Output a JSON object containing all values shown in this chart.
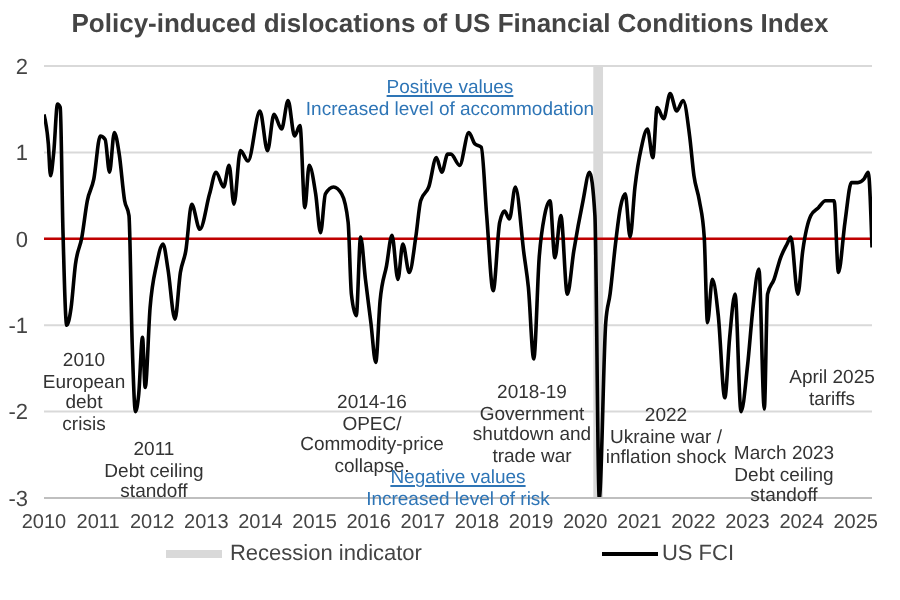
{
  "chart_data": {
    "type": "line",
    "title": "Policy-induced dislocations of US Financial Conditions Index",
    "x": [
      2010.0,
      2010.08,
      2010.12,
      2010.18,
      2010.25,
      2010.3,
      2010.35,
      2010.42,
      2010.5,
      2010.58,
      2010.7,
      2010.8,
      2010.92,
      2011.04,
      2011.13,
      2011.21,
      2011.3,
      2011.39,
      2011.49,
      2011.57,
      2011.63,
      2011.69,
      2011.75,
      2011.82,
      2011.87,
      2011.96,
      2012.08,
      2012.2,
      2012.29,
      2012.42,
      2012.52,
      2012.62,
      2012.73,
      2012.88,
      2013.06,
      2013.18,
      2013.32,
      2013.42,
      2013.51,
      2013.63,
      2013.77,
      2013.99,
      2014.13,
      2014.25,
      2014.39,
      2014.51,
      2014.63,
      2014.73,
      2014.82,
      2014.9,
      2015.02,
      2015.11,
      2015.2,
      2015.35,
      2015.5,
      2015.62,
      2015.68,
      2015.77,
      2015.85,
      2015.94,
      2016.04,
      2016.13,
      2016.21,
      2016.33,
      2016.43,
      2016.54,
      2016.63,
      2016.75,
      2016.87,
      2016.96,
      2017.11,
      2017.25,
      2017.35,
      2017.46,
      2017.52,
      2017.68,
      2017.85,
      2017.96,
      2018.08,
      2018.18,
      2018.3,
      2018.42,
      2018.51,
      2018.6,
      2018.71,
      2018.87,
      2018.95,
      2019.05,
      2019.15,
      2019.25,
      2019.35,
      2019.44,
      2019.55,
      2019.67,
      2019.79,
      2019.96,
      2020.08,
      2020.18,
      2020.26,
      2020.38,
      2020.46,
      2020.56,
      2020.65,
      2020.74,
      2020.83,
      2020.92,
      2021.04,
      2021.15,
      2021.25,
      2021.33,
      2021.45,
      2021.57,
      2021.69,
      2021.81,
      2021.93,
      2022.01,
      2022.11,
      2022.2,
      2022.26,
      2022.35,
      2022.46,
      2022.58,
      2022.67,
      2022.77,
      2022.88,
      2023.0,
      2023.1,
      2023.21,
      2023.31,
      2023.37,
      2023.49,
      2023.61,
      2023.73,
      2023.8,
      2023.93,
      2024.02,
      2024.17,
      2024.31,
      2024.44,
      2024.6,
      2024.68,
      2024.8,
      2024.92,
      2025.04,
      2025.15,
      2025.23,
      2025.3
    ],
    "series": [
      {
        "name": "US FCI",
        "color": "#000000",
        "values": [
          1.44,
          1.1,
          0.73,
          1.0,
          1.56,
          1.52,
          0.1,
          -1.0,
          -0.8,
          -0.3,
          0.02,
          0.44,
          0.69,
          1.19,
          1.15,
          0.77,
          1.23,
          0.98,
          0.44,
          0.27,
          -1.22,
          -2.0,
          -1.8,
          -1.14,
          -1.72,
          -0.8,
          -0.3,
          -0.06,
          -0.35,
          -0.93,
          -0.39,
          -0.14,
          0.4,
          0.11,
          0.52,
          0.77,
          0.6,
          0.85,
          0.4,
          1.02,
          0.9,
          1.48,
          1.02,
          1.44,
          1.27,
          1.6,
          1.19,
          1.31,
          0.36,
          0.85,
          0.52,
          0.07,
          0.52,
          0.6,
          0.52,
          0.19,
          -0.64,
          -0.89,
          0.02,
          -0.47,
          -0.97,
          -1.43,
          -0.72,
          -0.31,
          0.04,
          -0.47,
          -0.06,
          -0.39,
          0.02,
          0.44,
          0.6,
          0.94,
          0.77,
          0.98,
          0.98,
          0.85,
          1.23,
          1.1,
          1.06,
          0.27,
          -0.6,
          0.19,
          0.32,
          0.23,
          0.6,
          -0.18,
          -0.56,
          -1.39,
          -0.22,
          0.27,
          0.44,
          -0.22,
          0.27,
          -0.64,
          -0.14,
          0.44,
          0.77,
          0.27,
          -3.0,
          -0.97,
          -0.64,
          -0.06,
          0.36,
          0.52,
          0.02,
          0.6,
          1.06,
          1.27,
          0.94,
          1.52,
          1.39,
          1.68,
          1.48,
          1.6,
          1.19,
          0.73,
          0.44,
          0.02,
          -0.97,
          -0.47,
          -0.89,
          -1.84,
          -1.14,
          -0.64,
          -2.0,
          -1.47,
          -0.8,
          -0.35,
          -1.97,
          -0.64,
          -0.47,
          -0.22,
          -0.06,
          0.02,
          -0.64,
          -0.14,
          0.27,
          0.36,
          0.44,
          0.44,
          -0.39,
          0.19,
          0.65,
          0.65,
          0.69,
          0.77,
          -0.1
        ]
      }
    ],
    "xlim": [
      2010,
      2025.3
    ],
    "xticks": [
      2010,
      2011,
      2012,
      2013,
      2014,
      2015,
      2016,
      2017,
      2018,
      2019,
      2020,
      2021,
      2022,
      2023,
      2024,
      2025
    ],
    "ylim": [
      -3,
      2
    ],
    "yticks": [
      -3,
      -2,
      -1,
      0,
      1,
      2
    ],
    "grid": "y",
    "legend": "bottom",
    "ref_lines": [
      {
        "axis": "y",
        "value": 0,
        "color": "#c00000"
      }
    ],
    "bands": [
      {
        "axis": "x",
        "from": 2020.15,
        "to": 2020.33,
        "label": "Recession indicator",
        "color": "#d9d9d9"
      }
    ],
    "annotations": [
      "Positive values\nIncreased level of accommodation",
      "2010\nEuropean\ndebt\ncrisis",
      "2011\nDebt ceiling\nstandoff",
      "2014-16\nOPEC/\nCommodity-price\ncollapse.",
      "Negative values\nIncreased level of risk",
      "2018-19\nGovernment\nshutdown and\ntrade war",
      "2022\nUkraine war /\ninflation shock",
      "March 2023\nDebt ceiling\nstandoff",
      "April 2025\ntariffs"
    ]
  }
}
